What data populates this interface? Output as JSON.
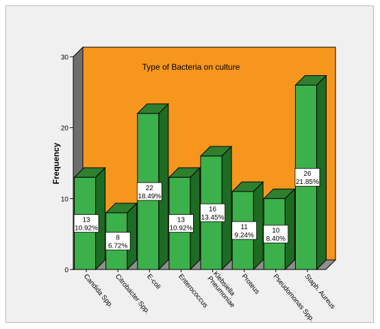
{
  "chart_data": {
    "type": "bar",
    "title": "Type of Bacteria on culture",
    "xlabel": "",
    "ylabel": "Frequency",
    "ylim": [
      0,
      30
    ],
    "yticks": [
      0,
      10,
      20,
      30
    ],
    "grid": false,
    "legend": "none",
    "three_d": true,
    "categories": [
      "Candida Spp.",
      "Citrobacter Spp.",
      "E-coli",
      "Enterococcus",
      "Klebsiella Pneumoniae",
      "Proteus",
      "Pseudomonas Spp.",
      "Staph. Aureus"
    ],
    "values": [
      13,
      8,
      22,
      13,
      16,
      11,
      10,
      26
    ],
    "data_labels": [
      [
        "13",
        "10.92%"
      ],
      [
        "8",
        "6.72%"
      ],
      [
        "22",
        "18.49%"
      ],
      [
        "13",
        "10.92%"
      ],
      [
        "16",
        "13.45%"
      ],
      [
        "11",
        "9.24%"
      ],
      [
        "10",
        "8.40%"
      ],
      [
        "26",
        "21.85%"
      ]
    ],
    "colors": {
      "wall": "#f7961c",
      "floor": "#8e8e8e",
      "bar_front": "#3cb04a",
      "bar_top": "#2f7f2f",
      "bar_side": "#1e6b23",
      "frame_bg": "#f0f0f0"
    }
  }
}
